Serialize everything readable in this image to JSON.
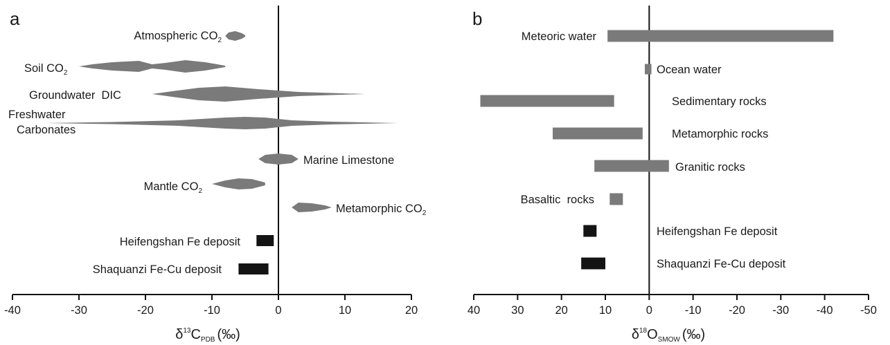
{
  "chart_data": [
    {
      "type": "range",
      "panel_letter": "a",
      "xlabel": {
        "symbol": "δ",
        "mass": "13",
        "element": "C",
        "subscript": "PDB",
        "unit": "(‰)"
      },
      "xlim": [
        -40,
        20
      ],
      "xticks": [
        -40,
        -30,
        -20,
        -10,
        0,
        10,
        20
      ],
      "xtick_labels": [
        "-40",
        "-30",
        "-20",
        "-10",
        "0",
        "10",
        "20"
      ],
      "zero_line": 0,
      "series": [
        {
          "label": "Atmospheric CO",
          "sub": "2",
          "shape": "lens",
          "color": "#7a7a7a",
          "profile": [
            [
              -8,
              0
            ],
            [
              -7.5,
              5
            ],
            [
              -6.5,
              7
            ],
            [
              -5.5,
              4
            ],
            [
              -5,
              1
            ]
          ]
        },
        {
          "label": "Soil CO",
          "sub": "2",
          "shape": "lens",
          "color": "#7a7a7a",
          "profile": [
            [
              -30,
              0
            ],
            [
              -28,
              3
            ],
            [
              -25,
              6
            ],
            [
              -21,
              8
            ],
            [
              -19,
              3
            ],
            [
              -17,
              5
            ],
            [
              -14,
              9
            ],
            [
              -11,
              6
            ],
            [
              -8,
              1
            ]
          ]
        },
        {
          "label": "Groundwater  DIC",
          "shape": "lens",
          "color": "#7a7a7a",
          "profile": [
            [
              -19,
              0
            ],
            [
              -16,
              4
            ],
            [
              -12,
              9
            ],
            [
              -8,
              11
            ],
            [
              -3,
              7
            ],
            [
              3,
              3
            ],
            [
              8,
              1.5
            ],
            [
              13,
              0
            ]
          ]
        },
        {
          "label": [
            "Freshwater",
            "Carbonates"
          ],
          "shape": "lens",
          "color": "#7a7a7a",
          "profile": [
            [
              -35,
              0
            ],
            [
              -25,
              1.5
            ],
            [
              -15,
              4
            ],
            [
              -8,
              8
            ],
            [
              -5,
              9
            ],
            [
              -2,
              8
            ],
            [
              2,
              4
            ],
            [
              8,
              2
            ],
            [
              18,
              0
            ]
          ]
        },
        {
          "label": "Marine Limestone",
          "shape": "lens",
          "color": "#7a7a7a",
          "profile": [
            [
              -3,
              0
            ],
            [
              -2,
              6
            ],
            [
              0,
              8
            ],
            [
              2,
              6
            ],
            [
              3,
              0
            ]
          ]
        },
        {
          "label": "Mantle CO",
          "sub": "2",
          "shape": "lens",
          "color": "#7a7a7a",
          "profile": [
            [
              -10,
              0
            ],
            [
              -8,
              5
            ],
            [
              -6,
              8
            ],
            [
              -4,
              7
            ],
            [
              -2,
              2
            ]
          ]
        },
        {
          "label": "Metamorphic CO",
          "sub": "2",
          "shape": "lens",
          "color": "#7a7a7a",
          "profile": [
            [
              2,
              0
            ],
            [
              3,
              7
            ],
            [
              5,
              6
            ],
            [
              7,
              3
            ],
            [
              8,
              0
            ]
          ]
        },
        {
          "label": "Heifengshan Fe deposit",
          "shape": "bar",
          "color": "#141414",
          "range": [
            -3.3,
            -0.7
          ]
        },
        {
          "label": "Shaquanzi Fe-Cu deposit",
          "shape": "bar",
          "color": "#141414",
          "range": [
            -6,
            -1.5
          ]
        }
      ]
    },
    {
      "type": "range",
      "panel_letter": "b",
      "xlabel": {
        "symbol": "δ",
        "mass": "18",
        "element": "O",
        "subscript": "SMOW",
        "unit": "(‰)"
      },
      "xlim": [
        40,
        -50
      ],
      "xticks": [
        40,
        30,
        20,
        10,
        0,
        -10,
        -20,
        -30,
        -40,
        -50
      ],
      "xtick_labels": [
        "40",
        "30",
        "20",
        "10",
        "0",
        "-10",
        "-20",
        "-30",
        "-40",
        "-50"
      ],
      "zero_line": 0,
      "series": [
        {
          "label": "Meteoric water",
          "shape": "bar",
          "color": "#7a7a7a",
          "range": [
            9.5,
            -42
          ]
        },
        {
          "label": "Ocean water",
          "shape": "bar",
          "color": "#7a7a7a",
          "range": [
            1,
            -0.5
          ]
        },
        {
          "label": "Sedimentary rocks",
          "shape": "bar",
          "color": "#7a7a7a",
          "range": [
            38.5,
            8
          ]
        },
        {
          "label": "Metamorphic rocks",
          "shape": "bar",
          "color": "#7a7a7a",
          "range": [
            22,
            1.5
          ]
        },
        {
          "label": "Granitic rocks",
          "shape": "bar",
          "color": "#7a7a7a",
          "range": [
            12.5,
            -4.5
          ]
        },
        {
          "label": "Basaltic  rocks",
          "shape": "bar",
          "color": "#7a7a7a",
          "range": [
            9,
            6
          ]
        },
        {
          "label": "Heifengshan Fe deposit",
          "shape": "bar",
          "color": "#141414",
          "range": [
            15,
            12
          ]
        },
        {
          "label": "Shaquanzi Fe-Cu deposit",
          "shape": "bar",
          "color": "#141414",
          "range": [
            15.5,
            10
          ]
        }
      ]
    }
  ]
}
